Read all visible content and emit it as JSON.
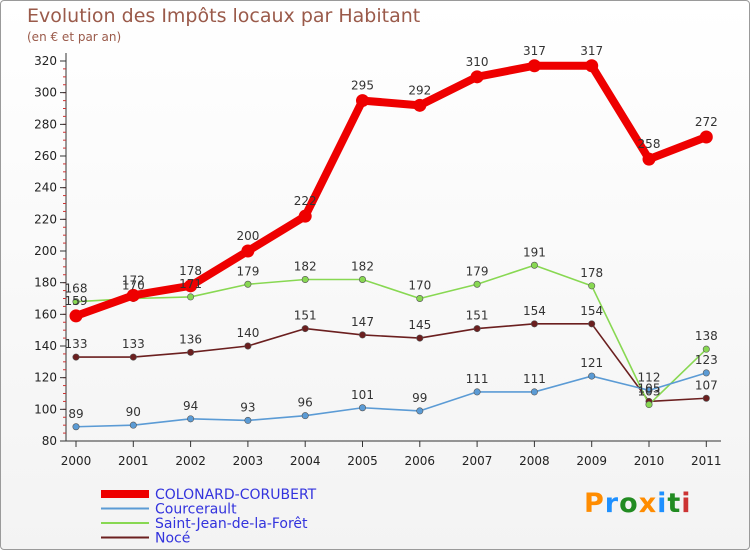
{
  "header": {
    "title": "Evolution des Impôts locaux par Habitant",
    "subtitle": "(en € et par an)"
  },
  "logo": {
    "text": "Proxiti",
    "colors": [
      "#ff8c00",
      "#1e90ff",
      "#228b22",
      "#ff8c00",
      "#1e90ff",
      "#228b22",
      "#cc3333"
    ]
  },
  "chart_data": {
    "type": "line",
    "title": "Evolution des Impôts locaux par Habitant",
    "subtitle": "(en € et par an)",
    "xlabel": "",
    "ylabel": "",
    "x": [
      "2000",
      "2001",
      "2002",
      "2003",
      "2004",
      "2005",
      "2006",
      "2007",
      "2008",
      "2009",
      "2010",
      "2011"
    ],
    "ylim": [
      80,
      320
    ],
    "yticks": [
      80,
      100,
      120,
      140,
      160,
      180,
      200,
      220,
      240,
      260,
      280,
      300,
      320
    ],
    "grid": false,
    "legend_position": "bottom-left",
    "series": [
      {
        "name": "COLONARD-CORUBERT",
        "color": "#ee0000",
        "values": [
          159,
          172,
          178,
          200,
          222,
          295,
          292,
          310,
          317,
          317,
          258,
          272
        ]
      },
      {
        "name": "Courcerault",
        "color": "#5b9bd5",
        "values": [
          89,
          90,
          94,
          93,
          96,
          101,
          99,
          111,
          111,
          121,
          112,
          123
        ]
      },
      {
        "name": "Saint-Jean-de-la-Forêt",
        "color": "#88d852",
        "values": [
          168,
          170,
          171,
          179,
          182,
          182,
          170,
          179,
          191,
          178,
          103,
          138
        ]
      },
      {
        "name": "Nocé",
        "color": "#6b1f1f",
        "values": [
          133,
          133,
          136,
          140,
          151,
          147,
          145,
          151,
          154,
          154,
          105,
          107
        ]
      }
    ]
  }
}
